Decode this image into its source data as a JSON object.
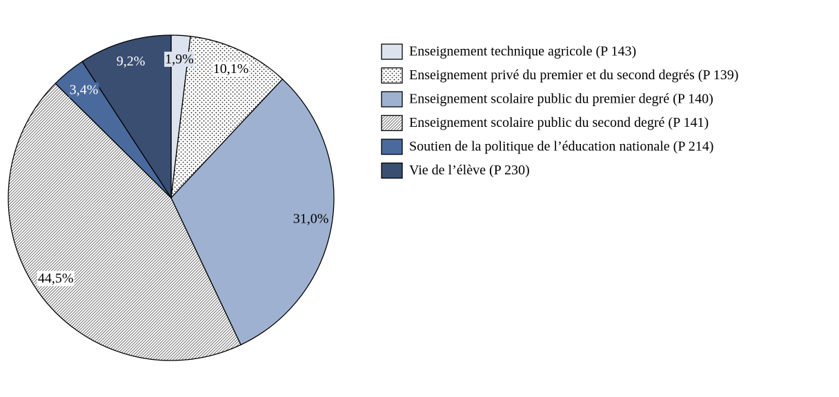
{
  "chart_data": {
    "type": "pie",
    "categories": [
      "Enseignement technique agricole (P 143)",
      "Enseignement privé du premier et du second degrés (P 139)",
      "Enseignement scolaire public du premier degré (P 140)",
      "Enseignement scolaire public du second degré (P 141)",
      "Soutien de la politique de l’éducation nationale (P 214)",
      "Vie de l’élève (P 230)"
    ],
    "values": [
      1.9,
      10.1,
      31.0,
      44.5,
      3.4,
      9.2
    ],
    "value_labels": [
      "1,9%",
      "10,1%",
      "31,0%",
      "44,5%",
      "3,4%",
      "9,2%"
    ],
    "colors": [
      "#dde3ee",
      "#ffffff",
      "#9fb1d0",
      "#ffffff",
      "#4a6a9e",
      "#3a4e72"
    ],
    "patterns": [
      null,
      "dots",
      null,
      "hatch",
      null,
      null
    ],
    "legend": "right"
  }
}
